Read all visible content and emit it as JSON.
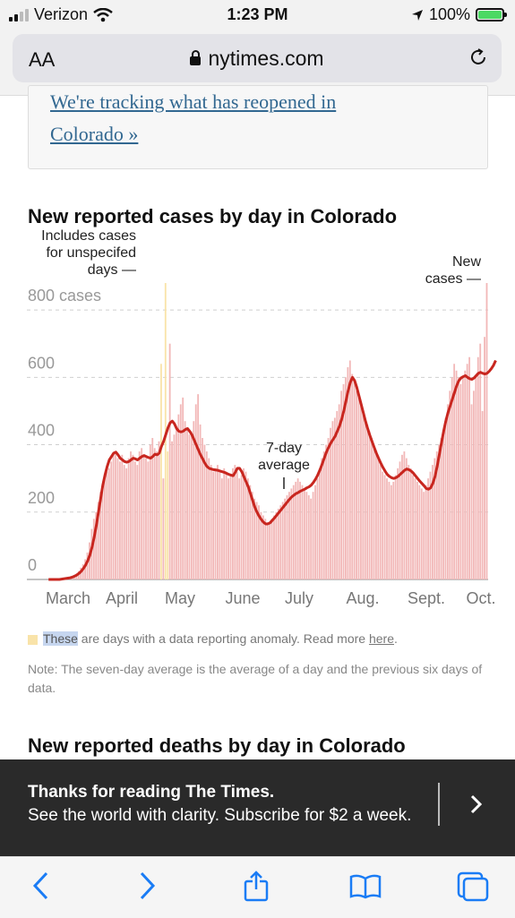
{
  "status": {
    "carrier": "Verizon",
    "time": "1:23 PM",
    "battery": "100%"
  },
  "browser": {
    "text_size_label": "AA",
    "url": "nytimes.com"
  },
  "previous_box": {
    "link_text_line1": "We're tracking what has reopened in",
    "link_text_line2": "Colorado »"
  },
  "chart_data": {
    "type": "bar",
    "title": "New reported cases by day in Colorado",
    "y_ticks": [
      "800 cases",
      "600",
      "400",
      "200",
      "0"
    ],
    "ylim": [
      0,
      880
    ],
    "x_ticks": [
      "March",
      "April",
      "May",
      "June",
      "July",
      "Aug.",
      "Sept.",
      "Oct."
    ],
    "grid": true,
    "annotations": {
      "anomaly": [
        "Includes cases",
        "for unspecifed",
        "days —"
      ],
      "new_cases": [
        "New",
        "cases —"
      ],
      "average": [
        "7-day",
        "average"
      ]
    },
    "series": [
      {
        "name": "New cases",
        "color": "#f2b8b8",
        "values": [
          0,
          0,
          0,
          0,
          0,
          0,
          2,
          3,
          3,
          5,
          8,
          10,
          12,
          18,
          25,
          35,
          45,
          60,
          80,
          110,
          150,
          180,
          200,
          230,
          260,
          280,
          300,
          320,
          330,
          350,
          370,
          380,
          360,
          350,
          370,
          340,
          330,
          360,
          380,
          370,
          350,
          340,
          380,
          390,
          370,
          360,
          350,
          400,
          420,
          390,
          380,
          410,
          640,
          300,
          880,
          380,
          700,
          410,
          430,
          450,
          490,
          520,
          540,
          470,
          450,
          430,
          440,
          470,
          520,
          550,
          460,
          420,
          400,
          380,
          360,
          340,
          320,
          330,
          340,
          320,
          300,
          330,
          320,
          300,
          310,
          330,
          340,
          320,
          300,
          310,
          330,
          320,
          300,
          280,
          260,
          240,
          230,
          220,
          200,
          190,
          180,
          170,
          170,
          180,
          190,
          200,
          210,
          220,
          230,
          240,
          250,
          260,
          270,
          280,
          290,
          300,
          290,
          280,
          270,
          260,
          250,
          240,
          260,
          280,
          300,
          330,
          360,
          380,
          400,
          420,
          450,
          470,
          480,
          500,
          520,
          560,
          580,
          600,
          630,
          650,
          610,
          590,
          560,
          540,
          520,
          500,
          480,
          460,
          440,
          420,
          400,
          380,
          360,
          340,
          320,
          310,
          300,
          290,
          280,
          290,
          310,
          330,
          350,
          370,
          380,
          360,
          340,
          330,
          310,
          300,
          290,
          280,
          270,
          260,
          280,
          300,
          320,
          340,
          360,
          380,
          400,
          420,
          440,
          480,
          520,
          560,
          600,
          640,
          620,
          600,
          580,
          600,
          620,
          640,
          660,
          520,
          560,
          600,
          660,
          700,
          500,
          720,
          880
        ]
      },
      {
        "name": "7-day average",
        "color": "#c8261f",
        "values": [
          0,
          0,
          0,
          0,
          0,
          0,
          1,
          2,
          3,
          4,
          5,
          7,
          10,
          13,
          18,
          24,
          32,
          42,
          55,
          72,
          95,
          125,
          160,
          200,
          240,
          280,
          310,
          335,
          355,
          365,
          375,
          378,
          370,
          360,
          355,
          350,
          348,
          350,
          355,
          360,
          358,
          355,
          360,
          365,
          368,
          365,
          362,
          360,
          365,
          372,
          370,
          375,
          395,
          410,
          430,
          450,
          465,
          470,
          462,
          448,
          440,
          438,
          440,
          445,
          448,
          440,
          430,
          415,
          400,
          385,
          370,
          358,
          345,
          335,
          330,
          328,
          326,
          325,
          324,
          322,
          320,
          318,
          315,
          312,
          310,
          308,
          318,
          330,
          330,
          320,
          305,
          290,
          275,
          255,
          235,
          215,
          200,
          188,
          178,
          170,
          165,
          165,
          168,
          175,
          182,
          190,
          198,
          206,
          214,
          222,
          230,
          238,
          245,
          250,
          255,
          258,
          262,
          265,
          268,
          272,
          275,
          280,
          288,
          298,
          310,
          325,
          342,
          360,
          378,
          392,
          405,
          415,
          425,
          440,
          455,
          475,
          500,
          530,
          560,
          585,
          600,
          590,
          570,
          545,
          520,
          495,
          470,
          448,
          428,
          410,
          392,
          375,
          360,
          346,
          333,
          322,
          312,
          306,
          302,
          300,
          302,
          306,
          312,
          318,
          324,
          328,
          326,
          322,
          316,
          308,
          300,
          292,
          285,
          278,
          270,
          268,
          272,
          285,
          305,
          335,
          370,
          405,
          440,
          470,
          495,
          515,
          535,
          555,
          575,
          590,
          598,
          602,
          605,
          600,
          596,
          594,
          598,
          605,
          612,
          615,
          612,
          610,
          612,
          618,
          626,
          636,
          650
        ]
      }
    ],
    "anomaly_days": [
      52,
      54,
      55
    ]
  },
  "legend": {
    "prefix_highlight": "These",
    "text": " are days with a data reporting anomaly. Read more ",
    "link": "here",
    "suffix": "."
  },
  "note": "Note: The seven-day average is the average of a day and the previous six days of data.",
  "next_title": "New reported deaths by day in Colorado",
  "banner": {
    "title": "Thanks for reading The Times.",
    "body": "See the world with clarity. Subscribe for $2 a week."
  }
}
